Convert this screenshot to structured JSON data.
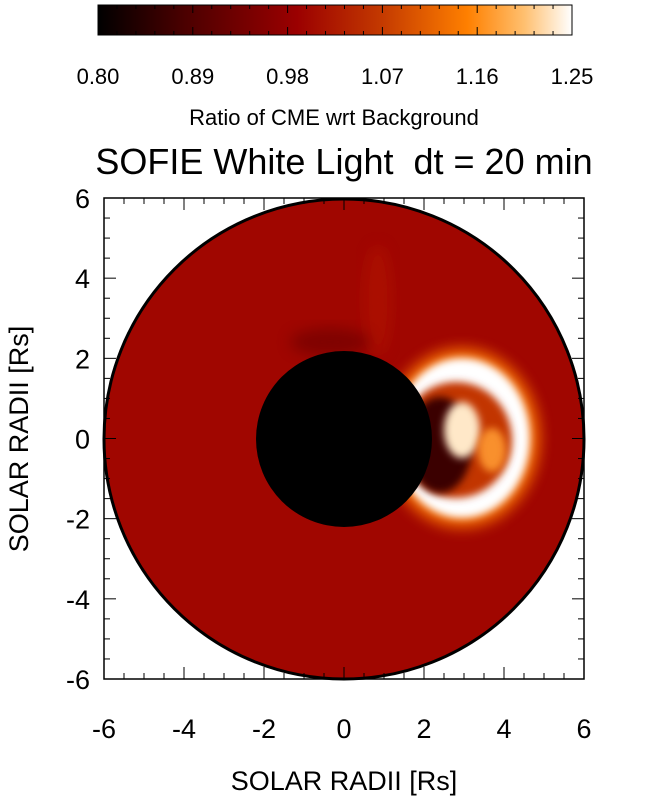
{
  "chart_data": {
    "type": "heatmap",
    "title": "SOFIE White Light  dt = 20 min",
    "xlabel": "SOLAR RADII [Rs]",
    "ylabel": "SOLAR RADII [Rs]",
    "xlim": [
      -6,
      6
    ],
    "ylim": [
      -6,
      6
    ],
    "x_ticks": [
      "-6",
      "-4",
      "-2",
      "0",
      "2",
      "4",
      "6"
    ],
    "y_ticks": [
      "-6",
      "-4",
      "-2",
      "0",
      "2",
      "4",
      "6"
    ],
    "x_tick_values": [
      -6,
      -4,
      -2,
      0,
      2,
      4,
      6
    ],
    "y_tick_values": [
      -6,
      -4,
      -2,
      0,
      2,
      4,
      6
    ],
    "colorbar": {
      "label": "Ratio of CME wrt Background",
      "ticks": [
        "0.80",
        "0.89",
        "0.98",
        "1.07",
        "1.16",
        "1.25"
      ],
      "range": [
        0.8,
        1.25
      ],
      "colormap_stops": [
        "#000000",
        "#4a0000",
        "#9b0000",
        "#c43a00",
        "#ff8000",
        "#ffc070",
        "#ffffff"
      ]
    },
    "field": {
      "occulter_radius_rs": 2.2,
      "outer_radius_rs": 6.0,
      "background_ratio": 1.0,
      "background_color": "#a00600",
      "occulter_color": "#000000",
      "cme_center_rs": [
        3.0,
        0.4
      ],
      "cme_front_color": "#ffffff",
      "cme_inner_dark_color": "#3a0000"
    }
  }
}
